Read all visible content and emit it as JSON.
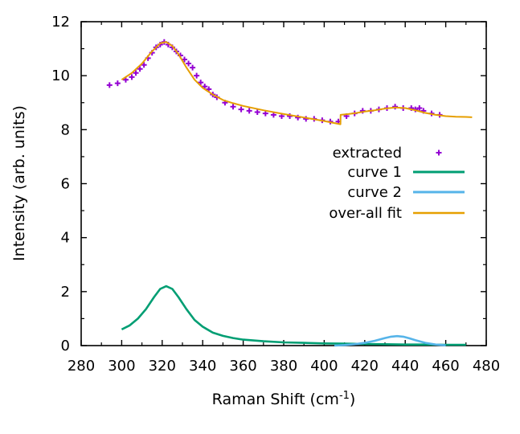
{
  "chart_data": {
    "type": "line",
    "title": "",
    "xlabel": "Raman Shift (cm",
    "xlabel_sup": "-1",
    "xlabel_end": ")",
    "ylabel": "Intensity (arb. units)",
    "xlim": [
      280,
      480
    ],
    "ylim": [
      0,
      12
    ],
    "xticks": [
      280,
      300,
      320,
      340,
      360,
      380,
      400,
      420,
      440,
      460,
      480
    ],
    "yticks": [
      0,
      2,
      4,
      6,
      8,
      10,
      12
    ],
    "grid": false,
    "legend_position": "right",
    "series": [
      {
        "name": "extracted",
        "style": "points",
        "color": "#9400d3",
        "x": [
          294,
          298,
          302,
          305,
          307,
          309,
          311,
          313,
          315,
          317,
          319,
          321,
          323,
          325,
          327,
          329,
          331,
          333,
          335,
          337,
          339,
          341,
          343,
          345,
          347,
          351,
          355,
          359,
          363,
          367,
          371,
          375,
          379,
          383,
          387,
          391,
          395,
          399,
          403,
          407,
          411,
          415,
          419,
          423,
          427,
          431,
          435,
          439,
          443,
          445,
          447,
          449,
          453,
          457
        ],
        "y": [
          9.65,
          9.72,
          9.85,
          9.95,
          10.1,
          10.25,
          10.4,
          10.65,
          10.85,
          11.05,
          11.15,
          11.25,
          11.15,
          11.05,
          10.9,
          10.75,
          10.6,
          10.45,
          10.3,
          10.0,
          9.75,
          9.6,
          9.5,
          9.3,
          9.2,
          9.0,
          8.85,
          8.75,
          8.7,
          8.65,
          8.6,
          8.55,
          8.5,
          8.5,
          8.45,
          8.4,
          8.4,
          8.35,
          8.3,
          8.3,
          8.5,
          8.6,
          8.7,
          8.7,
          8.75,
          8.8,
          8.85,
          8.8,
          8.8,
          8.75,
          8.8,
          8.7,
          8.6,
          8.55
        ]
      },
      {
        "name": "curve 1",
        "style": "line",
        "color": "#009e73",
        "x": [
          300,
          304,
          308,
          312,
          316,
          319,
          322,
          325,
          328,
          332,
          336,
          340,
          345,
          350,
          355,
          360,
          370,
          380,
          390,
          400,
          410,
          420,
          430,
          440,
          450,
          460,
          470
        ],
        "y": [
          0.6,
          0.75,
          1.0,
          1.35,
          1.8,
          2.1,
          2.2,
          2.1,
          1.8,
          1.35,
          0.95,
          0.7,
          0.48,
          0.36,
          0.28,
          0.22,
          0.16,
          0.12,
          0.1,
          0.08,
          0.07,
          0.06,
          0.05,
          0.04,
          0.04,
          0.03,
          0.03
        ]
      },
      {
        "name": "curve 2",
        "style": "line",
        "color": "#56b4e9",
        "x": [
          405,
          410,
          415,
          420,
          425,
          430,
          433,
          436,
          439,
          442,
          445,
          450,
          455,
          460
        ],
        "y": [
          0.0,
          0.02,
          0.05,
          0.1,
          0.18,
          0.28,
          0.33,
          0.35,
          0.33,
          0.27,
          0.2,
          0.1,
          0.04,
          0.01
        ]
      },
      {
        "name": "over-all fit",
        "style": "line",
        "color": "#e69f00",
        "x": [
          300,
          305,
          310,
          315,
          319,
          322,
          325,
          328,
          332,
          336,
          340,
          345,
          350,
          355,
          360,
          370,
          380,
          390,
          400,
          408,
          408.1,
          412,
          416,
          420,
          425,
          430,
          435,
          440,
          445,
          450,
          455,
          460,
          465,
          470,
          473
        ],
        "y": [
          9.85,
          10.1,
          10.45,
          10.9,
          11.2,
          11.25,
          11.1,
          10.8,
          10.3,
          9.85,
          9.55,
          9.3,
          9.1,
          8.98,
          8.88,
          8.72,
          8.58,
          8.45,
          8.32,
          8.2,
          8.55,
          8.58,
          8.62,
          8.67,
          8.72,
          8.78,
          8.82,
          8.8,
          8.72,
          8.62,
          8.55,
          8.5,
          8.48,
          8.47,
          8.46
        ]
      }
    ]
  }
}
